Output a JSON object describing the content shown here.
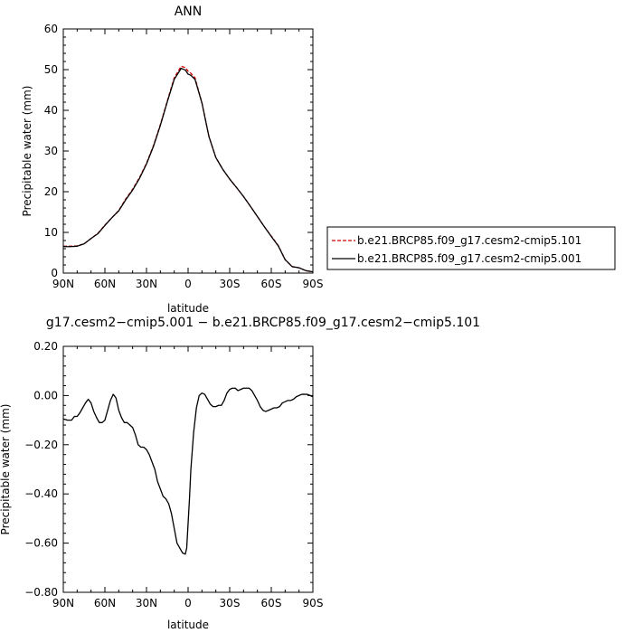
{
  "chart_data": [
    {
      "type": "line",
      "title": "ANN",
      "xlabel": "latitude",
      "ylabel": "Precipitable water (mm)",
      "xlim": [
        90,
        -90
      ],
      "ylim": [
        0,
        60
      ],
      "xticks": [
        90,
        60,
        30,
        0,
        -30,
        -60,
        -90
      ],
      "xtick_labels": [
        "90N",
        "60N",
        "30N",
        "0",
        "30S",
        "60S",
        "90S"
      ],
      "yticks": [
        0,
        10,
        20,
        30,
        40,
        50,
        60
      ],
      "ytick_labels": [
        "0",
        "10",
        "20",
        "30",
        "40",
        "50",
        "60"
      ],
      "grid": false,
      "legend_position": "right",
      "series": [
        {
          "name": "b.e21.BRCP85.f09_g17.cesm2-cmip5.101",
          "color": "#cc0000",
          "dash": "dashed",
          "x": [
            90,
            85,
            80,
            75,
            70,
            65,
            60,
            55,
            50,
            45,
            40,
            35,
            30,
            25,
            20,
            15,
            10,
            5,
            2,
            0,
            -2,
            -5,
            -10,
            -15,
            -20,
            -25,
            -30,
            -35,
            -40,
            -45,
            -50,
            -55,
            -60,
            -65,
            -70,
            -75,
            -80,
            -85,
            -90
          ],
          "y": [
            6.6,
            6.6,
            6.7,
            7.2,
            8.5,
            9.8,
            11.8,
            13.6,
            15.4,
            18.2,
            20.6,
            23.5,
            27,
            31.3,
            36.5,
            42.3,
            48,
            50.8,
            50.5,
            49.6,
            49.1,
            48,
            41.8,
            33.6,
            28.4,
            25.5,
            23.1,
            21,
            18.8,
            16.4,
            13.9,
            11.4,
            9.1,
            6.8,
            3.3,
            1.6,
            1.3,
            0.6,
            0.3
          ]
        },
        {
          "name": "b.e21.BRCP85.f09_g17.cesm2-cmip5.001",
          "color": "#000000",
          "dash": "solid",
          "x": [
            90,
            85,
            80,
            75,
            70,
            65,
            60,
            55,
            50,
            45,
            40,
            35,
            30,
            25,
            20,
            15,
            10,
            5,
            2,
            0,
            -2,
            -5,
            -10,
            -15,
            -20,
            -25,
            -30,
            -35,
            -40,
            -45,
            -50,
            -55,
            -60,
            -65,
            -70,
            -75,
            -80,
            -85,
            -90
          ],
          "y": [
            6.5,
            6.5,
            6.6,
            7.2,
            8.5,
            9.7,
            11.7,
            13.6,
            15.3,
            18,
            20.4,
            23.3,
            26.8,
            31.1,
            36.3,
            42.1,
            47.6,
            50.3,
            49.9,
            48.9,
            48.6,
            47.6,
            41.8,
            33.6,
            28.4,
            25.5,
            23.1,
            21,
            18.8,
            16.4,
            13.9,
            11.4,
            9,
            6.7,
            3.3,
            1.6,
            1.3,
            0.6,
            0.3
          ]
        }
      ]
    },
    {
      "type": "line",
      "title": "g17.cesm2−cmip5.001 − b.e21.BRCP85.f09_g17.cesm2−cmip5.101",
      "xlabel": "latitude",
      "ylabel": "Precipitable water (mm)",
      "xlim": [
        90,
        -90
      ],
      "ylim": [
        -0.8,
        0.2
      ],
      "xticks": [
        90,
        60,
        30,
        0,
        -30,
        -60,
        -90
      ],
      "xtick_labels": [
        "90N",
        "60N",
        "30N",
        "0",
        "30S",
        "60S",
        "90S"
      ],
      "yticks": [
        0.2,
        0,
        -0.2,
        -0.4,
        -0.6,
        -0.8
      ],
      "ytick_labels": [
        "0.20",
        "0.00",
        "−0.20",
        "−0.40",
        "−0.60",
        "−0.80"
      ],
      "grid": false,
      "series": [
        {
          "color": "#000000",
          "x": [
            90,
            87,
            84,
            82,
            80,
            78,
            76,
            75,
            74,
            72,
            70,
            68,
            66,
            64,
            62,
            60,
            58,
            56,
            54,
            52,
            50,
            48,
            46,
            44,
            42,
            40,
            38,
            36,
            34,
            32,
            30,
            28,
            26,
            24,
            22,
            20,
            18,
            16,
            14,
            12,
            10,
            8,
            6,
            4,
            2,
            1,
            0,
            -1,
            -2,
            -4,
            -6,
            -8,
            -10,
            -12,
            -14,
            -16,
            -18,
            -20,
            -22,
            -24,
            -26,
            -28,
            -30,
            -32,
            -34,
            -36,
            -38,
            -40,
            -42,
            -44,
            -46,
            -48,
            -50,
            -52,
            -54,
            -56,
            -58,
            -60,
            -62,
            -64,
            -66,
            -68,
            -70,
            -72,
            -74,
            -76,
            -78,
            -80,
            -82,
            -84,
            -86,
            -88,
            -90
          ],
          "y": [
            -0.095,
            -0.1,
            -0.1,
            -0.085,
            -0.085,
            -0.07,
            -0.05,
            -0.04,
            -0.03,
            -0.015,
            -0.03,
            -0.065,
            -0.09,
            -0.11,
            -0.11,
            -0.1,
            -0.06,
            -0.02,
            0.005,
            -0.01,
            -0.06,
            -0.09,
            -0.11,
            -0.11,
            -0.12,
            -0.13,
            -0.16,
            -0.2,
            -0.21,
            -0.21,
            -0.22,
            -0.24,
            -0.27,
            -0.3,
            -0.35,
            -0.38,
            -0.41,
            -0.42,
            -0.44,
            -0.48,
            -0.54,
            -0.6,
            -0.62,
            -0.64,
            -0.645,
            -0.62,
            -0.52,
            -0.42,
            -0.3,
            -0.15,
            -0.05,
            0.0,
            0.01,
            0.005,
            -0.015,
            -0.035,
            -0.045,
            -0.045,
            -0.04,
            -0.04,
            -0.02,
            0.01,
            0.025,
            0.03,
            0.03,
            0.02,
            0.025,
            0.03,
            0.03,
            0.03,
            0.02,
            0.0,
            -0.02,
            -0.045,
            -0.06,
            -0.065,
            -0.06,
            -0.055,
            -0.05,
            -0.05,
            -0.045,
            -0.03,
            -0.025,
            -0.02,
            -0.02,
            -0.015,
            -0.005,
            0.0,
            0.005,
            0.005,
            0.005,
            0.0,
            -0.005
          ]
        }
      ]
    }
  ]
}
